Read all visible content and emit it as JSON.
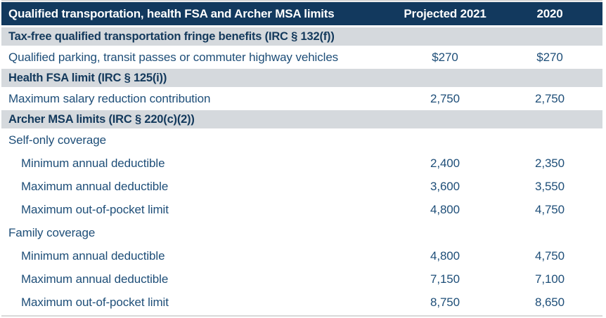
{
  "table": {
    "header": {
      "label": "Qualified transportation, health FSA and Archer MSA limits",
      "col1": "Projected 2021",
      "col2": "2020"
    },
    "rows": [
      {
        "type": "section",
        "label": "Tax-free qualified transportation fringe benefits (IRC § 132(f))",
        "col1": "",
        "col2": ""
      },
      {
        "type": "data",
        "label": "Qualified parking, transit passes or commuter highway vehicles",
        "col1": "$270",
        "col2": "$270"
      },
      {
        "type": "section",
        "label": "Health FSA limit (IRC § 125(i))",
        "col1": "",
        "col2": ""
      },
      {
        "type": "data",
        "label": "Maximum salary reduction contribution",
        "col1": "2,750",
        "col2": "2,750"
      },
      {
        "type": "section",
        "label": "Archer MSA limits (IRC § 220(c)(2))",
        "col1": "",
        "col2": ""
      },
      {
        "type": "data",
        "label": "Self-only coverage",
        "col1": "",
        "col2": ""
      },
      {
        "type": "data-indent",
        "label": "Minimum annual deductible",
        "col1": "2,400",
        "col2": "2,350"
      },
      {
        "type": "data-indent",
        "label": "Maximum annual deductible",
        "col1": "3,600",
        "col2": "3,550"
      },
      {
        "type": "data-indent",
        "label": "Maximum out-of-pocket limit",
        "col1": "4,800",
        "col2": "4,750"
      },
      {
        "type": "data",
        "label": "Family coverage",
        "col1": "",
        "col2": ""
      },
      {
        "type": "data-indent",
        "label": "Minimum annual deductible",
        "col1": "4,800",
        "col2": "4,750"
      },
      {
        "type": "data-indent",
        "label": "Maximum annual deductible",
        "col1": "7,150",
        "col2": "7,100"
      },
      {
        "type": "data-indent",
        "label": "Maximum out-of-pocket limit",
        "col1": "8,750",
        "col2": "8,650"
      }
    ]
  },
  "colors": {
    "header_bg": "#12395e",
    "header_text": "#ffffff",
    "section_bg": "#d5d9dd",
    "section_text": "#13395c",
    "data_text": "#1e4e78",
    "border_line": "#d9d9d9"
  }
}
